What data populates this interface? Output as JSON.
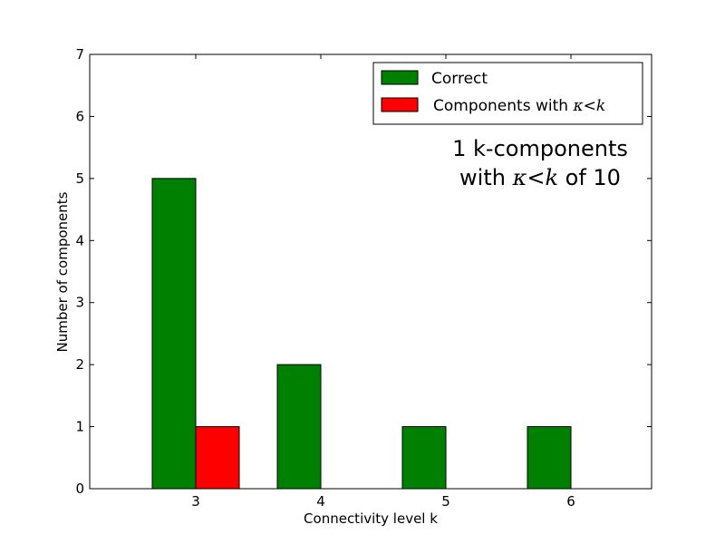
{
  "chart_data": {
    "type": "bar",
    "categories": [
      "3",
      "4",
      "5",
      "6"
    ],
    "series": [
      {
        "name": "Correct",
        "color": "#008000",
        "values": [
          5,
          2,
          1,
          1
        ]
      },
      {
        "name_parts": {
          "pre": "Components with ",
          "m1": "κ",
          "op": "<",
          "m2": "k"
        },
        "color": "#ff0000",
        "values": [
          1,
          0,
          0,
          0
        ]
      }
    ],
    "xlabel": "Connectivity level k",
    "ylabel": "Number of components",
    "ylim": [
      0,
      7
    ],
    "yticks": [
      "0",
      "1",
      "2",
      "3",
      "4",
      "5",
      "6",
      "7"
    ],
    "grid": false,
    "legend_position": "top-right",
    "annotation": {
      "line1": "1 k-components",
      "line2": {
        "pre": "with ",
        "m1": "κ",
        "op": "<",
        "m2": "k",
        "post": " of 10"
      }
    }
  }
}
